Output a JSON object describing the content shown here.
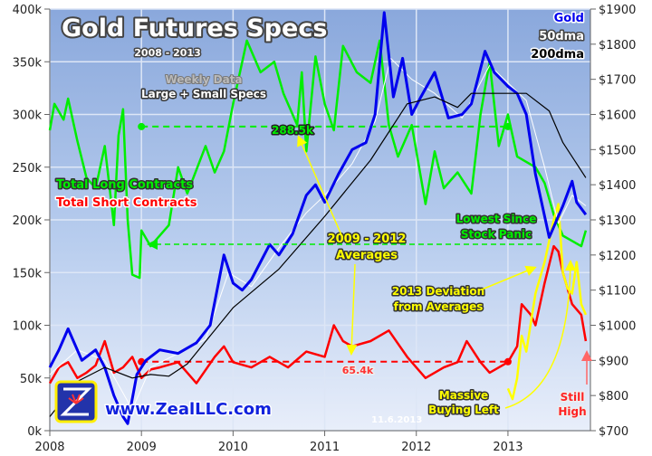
{
  "chart_data": {
    "type": "line",
    "title": "Gold Futures Specs",
    "subtitle": "2008 - 2013",
    "note1": "Weekly Data",
    "note2": "Large + Small Specs",
    "x_ticks": [
      "2008",
      "2009",
      "2010",
      "2011",
      "2012",
      "2013"
    ],
    "xlim": [
      2008,
      2013.9
    ],
    "left_axis": {
      "ylim": [
        0,
        400
      ],
      "ticks": [
        "0k",
        "50k",
        "100k",
        "150k",
        "200k",
        "250k",
        "300k",
        "350k",
        "400k"
      ]
    },
    "right_axis": {
      "ylim": [
        700,
        1900
      ],
      "ticks": [
        "$700",
        "$800",
        "$900",
        "$1000",
        "$1100",
        "$1200",
        "$1300",
        "$1400",
        "$1500",
        "$1600",
        "$1700",
        "$1800",
        "$1900"
      ]
    },
    "grid": true,
    "legend_left": [
      "Total Long Contracts",
      "Total Short Contracts"
    ],
    "legend_right": [
      "Gold",
      "50dma",
      "200dma"
    ],
    "colors": {
      "long": "#00ee00",
      "short": "#ff0000",
      "gold": "#0000ee",
      "dma50": "#ffffff",
      "dma200": "#000000",
      "deviation": "#ffff00"
    },
    "series": [
      {
        "name": "Total Long Contracts",
        "axis": "left",
        "x": [
          2008.0,
          2008.05,
          2008.15,
          2008.2,
          2008.3,
          2008.4,
          2008.5,
          2008.6,
          2008.7,
          2008.75,
          2008.8,
          2008.85,
          2008.9,
          2008.98,
          2009.0,
          2009.1,
          2009.3,
          2009.4,
          2009.5,
          2009.7,
          2009.8,
          2009.9,
          2010.0,
          2010.15,
          2010.3,
          2010.45,
          2010.55,
          2010.7,
          2010.75,
          2010.8,
          2010.9,
          2011.0,
          2011.1,
          2011.2,
          2011.35,
          2011.5,
          2011.6,
          2011.7,
          2011.8,
          2011.95,
          2012.1,
          2012.2,
          2012.3,
          2012.45,
          2012.6,
          2012.7,
          2012.8,
          2012.9,
          2013.0,
          2013.1,
          2013.3,
          2013.4,
          2013.5,
          2013.6,
          2013.7,
          2013.8,
          2013.85
        ],
        "values": [
          285,
          310,
          295,
          315,
          275,
          240,
          230,
          270,
          195,
          280,
          305,
          200,
          148,
          145,
          190,
          175,
          195,
          250,
          225,
          270,
          245,
          265,
          310,
          370,
          340,
          350,
          320,
          290,
          340,
          265,
          355,
          310,
          285,
          365,
          340,
          330,
          370,
          290,
          260,
          290,
          215,
          265,
          230,
          245,
          225,
          300,
          350,
          270,
          300,
          260,
          250,
          235,
          205,
          185,
          180,
          175,
          190
        ]
      },
      {
        "name": "Total Short Contracts",
        "axis": "left",
        "x": [
          2008.0,
          2008.1,
          2008.2,
          2008.3,
          2008.4,
          2008.5,
          2008.6,
          2008.7,
          2008.8,
          2008.9,
          2009.0,
          2009.1,
          2009.2,
          2009.4,
          2009.6,
          2009.8,
          2009.9,
          2010.0,
          2010.2,
          2010.4,
          2010.6,
          2010.8,
          2011.0,
          2011.1,
          2011.2,
          2011.3,
          2011.5,
          2011.7,
          2011.9,
          2012.1,
          2012.3,
          2012.45,
          2012.55,
          2012.7,
          2012.8,
          2013.0,
          2013.1,
          2013.15,
          2013.25,
          2013.3,
          2013.4,
          2013.5,
          2013.55,
          2013.6,
          2013.7,
          2013.8,
          2013.85
        ],
        "values": [
          45,
          60,
          65,
          50,
          55,
          62,
          85,
          55,
          60,
          70,
          50,
          58,
          60,
          65,
          45,
          70,
          80,
          65,
          60,
          70,
          60,
          75,
          70,
          100,
          85,
          80,
          85,
          95,
          70,
          50,
          60,
          65,
          85,
          65,
          55,
          65,
          80,
          120,
          110,
          100,
          140,
          175,
          170,
          150,
          120,
          110,
          85
        ]
      },
      {
        "name": "Gold",
        "axis": "right",
        "x": [
          2008.0,
          2008.1,
          2008.2,
          2008.35,
          2008.5,
          2008.6,
          2008.7,
          2008.8,
          2008.85,
          2008.95,
          2009.05,
          2009.2,
          2009.4,
          2009.6,
          2009.75,
          2009.9,
          2010.0,
          2010.1,
          2010.2,
          2010.4,
          2010.5,
          2010.65,
          2010.8,
          2010.9,
          2011.0,
          2011.15,
          2011.3,
          2011.45,
          2011.55,
          2011.65,
          2011.75,
          2011.85,
          2011.95,
          2012.05,
          2012.2,
          2012.35,
          2012.5,
          2012.6,
          2012.75,
          2012.85,
          2013.0,
          2013.1,
          2013.2,
          2013.3,
          2013.45,
          2013.5,
          2013.6,
          2013.7,
          2013.75,
          2013.85
        ],
        "values": [
          880,
          930,
          990,
          900,
          930,
          880,
          800,
          740,
          720,
          860,
          900,
          930,
          920,
          950,
          1000,
          1200,
          1120,
          1100,
          1130,
          1230,
          1200,
          1260,
          1370,
          1400,
          1350,
          1430,
          1500,
          1520,
          1600,
          1890,
          1650,
          1760,
          1600,
          1650,
          1720,
          1590,
          1600,
          1630,
          1780,
          1720,
          1680,
          1660,
          1600,
          1430,
          1250,
          1280,
          1340,
          1410,
          1350,
          1315
        ]
      },
      {
        "name": "50dma",
        "axis": "right",
        "x": [
          2008.0,
          2008.3,
          2008.6,
          2008.9,
          2009.1,
          2009.4,
          2009.7,
          2009.95,
          2010.2,
          2010.5,
          2010.8,
          2011.0,
          2011.3,
          2011.55,
          2011.72,
          2011.95,
          2012.2,
          2012.5,
          2012.8,
          2013.0,
          2013.2,
          2013.4,
          2013.55,
          2013.7,
          2013.85
        ],
        "values": [
          860,
          930,
          900,
          760,
          880,
          920,
          960,
          1150,
          1110,
          1220,
          1320,
          1370,
          1460,
          1580,
          1760,
          1700,
          1660,
          1590,
          1740,
          1690,
          1640,
          1450,
          1290,
          1370,
          1340
        ]
      },
      {
        "name": "200dma",
        "axis": "right",
        "x": [
          2008.0,
          2008.3,
          2008.6,
          2008.9,
          2009.1,
          2009.3,
          2009.5,
          2010.0,
          2010.5,
          2011.0,
          2011.5,
          2011.9,
          2012.2,
          2012.45,
          2012.6,
          2012.9,
          2013.2,
          2013.45,
          2013.6,
          2013.85
        ],
        "values": [
          740,
          840,
          880,
          850,
          860,
          855,
          890,
          1050,
          1160,
          1310,
          1470,
          1630,
          1650,
          1620,
          1660,
          1660,
          1660,
          1610,
          1520,
          1420
        ]
      },
      {
        "name": "2013 Deviation from Averages",
        "axis": "left",
        "x": [
          2013.0,
          2013.05,
          2013.1,
          2013.15,
          2013.2,
          2013.3,
          2013.4,
          2013.5,
          2013.55,
          2013.6,
          2013.65,
          2013.7,
          2013.75,
          2013.8,
          2013.85
        ],
        "values": [
          40,
          30,
          50,
          90,
          75,
          130,
          160,
          200,
          215,
          150,
          135,
          130,
          160,
          120,
          110
        ]
      }
    ],
    "averages": [
      {
        "label": "288.5k",
        "value": 288.5,
        "color": "#00ee00"
      },
      {
        "label": "65.4k",
        "value": 65.4,
        "color": "#ff0000"
      }
    ],
    "annotations": {
      "averages_label": [
        "2009 - 2012",
        "Averages"
      ],
      "lowest": [
        "Lowest Since",
        "Stock Panic"
      ],
      "deviation": [
        "2013 Deviation",
        "from Averages"
      ],
      "buying": [
        "Massive",
        "Buying Left"
      ],
      "still_high": [
        "Still",
        "High"
      ],
      "date": "11.6.2013",
      "website": "www.ZealLLC.com"
    }
  }
}
